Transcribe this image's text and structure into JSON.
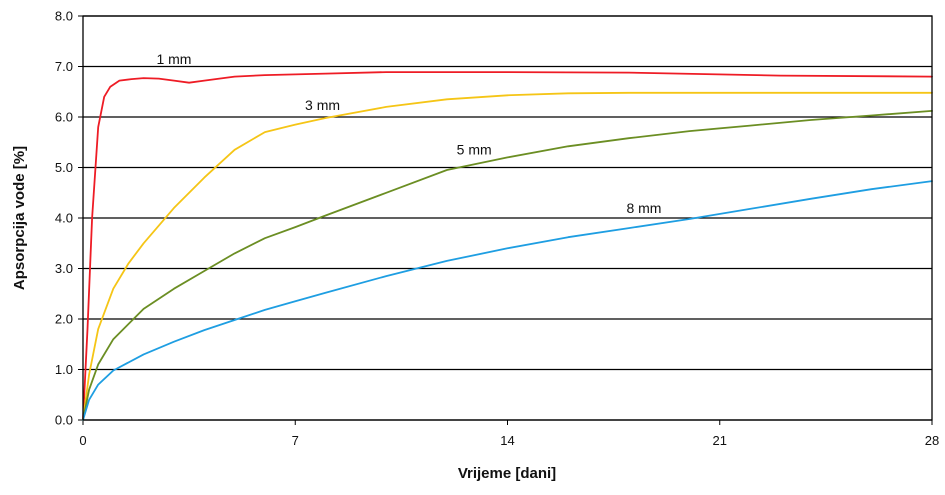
{
  "chart_data": {
    "type": "line",
    "title": "",
    "xlabel": "Vrijeme [dani]",
    "ylabel": "Apsorpcija vode [%]",
    "xlim": [
      0,
      28
    ],
    "ylim": [
      0.0,
      8.0
    ],
    "x_ticks": [
      "0",
      "7",
      "14",
      "21",
      "28"
    ],
    "y_ticks": [
      "0.0",
      "1.0",
      "2.0",
      "3.0",
      "4.0",
      "5.0",
      "6.0",
      "7.0",
      "8.0"
    ],
    "grid": "horizontal",
    "legend": "none",
    "series": [
      {
        "name": "1 mm",
        "color": "#ee1c25",
        "x": [
          0,
          0.15,
          0.3,
          0.5,
          0.7,
          0.9,
          1.2,
          1.6,
          2.0,
          2.5,
          3.0,
          3.5,
          4.0,
          4.5,
          5.0,
          6.0,
          8.0,
          10.0,
          14.0,
          18.0,
          23.0,
          28.0
        ],
        "y": [
          0,
          1.8,
          4.0,
          5.8,
          6.4,
          6.6,
          6.72,
          6.75,
          6.77,
          6.76,
          6.72,
          6.68,
          6.72,
          6.76,
          6.8,
          6.83,
          6.86,
          6.89,
          6.89,
          6.88,
          6.82,
          6.8
        ]
      },
      {
        "name": "3 mm",
        "color": "#f5c516",
        "x": [
          0,
          0.2,
          0.5,
          1.0,
          1.5,
          2.0,
          3.0,
          4.0,
          5.0,
          6.0,
          7.0,
          8.0,
          10.0,
          12.0,
          14.0,
          16.0,
          18.0,
          21.0,
          24.0,
          28.0
        ],
        "y": [
          0,
          0.9,
          1.8,
          2.6,
          3.1,
          3.5,
          4.2,
          4.8,
          5.35,
          5.7,
          5.85,
          5.98,
          6.2,
          6.35,
          6.43,
          6.47,
          6.48,
          6.48,
          6.48,
          6.48
        ]
      },
      {
        "name": "5 mm",
        "color": "#6b8e23",
        "x": [
          0,
          0.2,
          0.5,
          1.0,
          2.0,
          3.0,
          4.0,
          5.0,
          6.0,
          7.0,
          8.0,
          10.0,
          12.0,
          14.0,
          16.0,
          18.0,
          20.0,
          22.0,
          24.0,
          26.0,
          28.0
        ],
        "y": [
          0,
          0.6,
          1.1,
          1.6,
          2.2,
          2.6,
          2.95,
          3.3,
          3.6,
          3.82,
          4.05,
          4.5,
          4.95,
          5.2,
          5.42,
          5.58,
          5.72,
          5.83,
          5.94,
          6.03,
          6.12
        ]
      },
      {
        "name": "8 mm",
        "color": "#1e9ee2",
        "x": [
          0,
          0.2,
          0.5,
          1.0,
          2.0,
          3.0,
          4.0,
          5.0,
          6.0,
          7.0,
          8.0,
          10.0,
          12.0,
          14.0,
          16.0,
          18.0,
          20.0,
          22.0,
          24.0,
          26.0,
          28.0
        ],
        "y": [
          0,
          0.4,
          0.7,
          0.98,
          1.3,
          1.55,
          1.78,
          1.98,
          2.18,
          2.35,
          2.52,
          2.85,
          3.15,
          3.4,
          3.62,
          3.8,
          3.98,
          4.18,
          4.38,
          4.57,
          4.73
        ]
      }
    ],
    "annotations": [
      {
        "text": "1 mm",
        "x": 3.0,
        "y": 7.05
      },
      {
        "text": "3 mm",
        "x": 7.9,
        "y": 6.14
      },
      {
        "text": "5 mm",
        "x": 12.9,
        "y": 5.26
      },
      {
        "text": "8 mm",
        "x": 18.5,
        "y": 4.1
      }
    ]
  }
}
